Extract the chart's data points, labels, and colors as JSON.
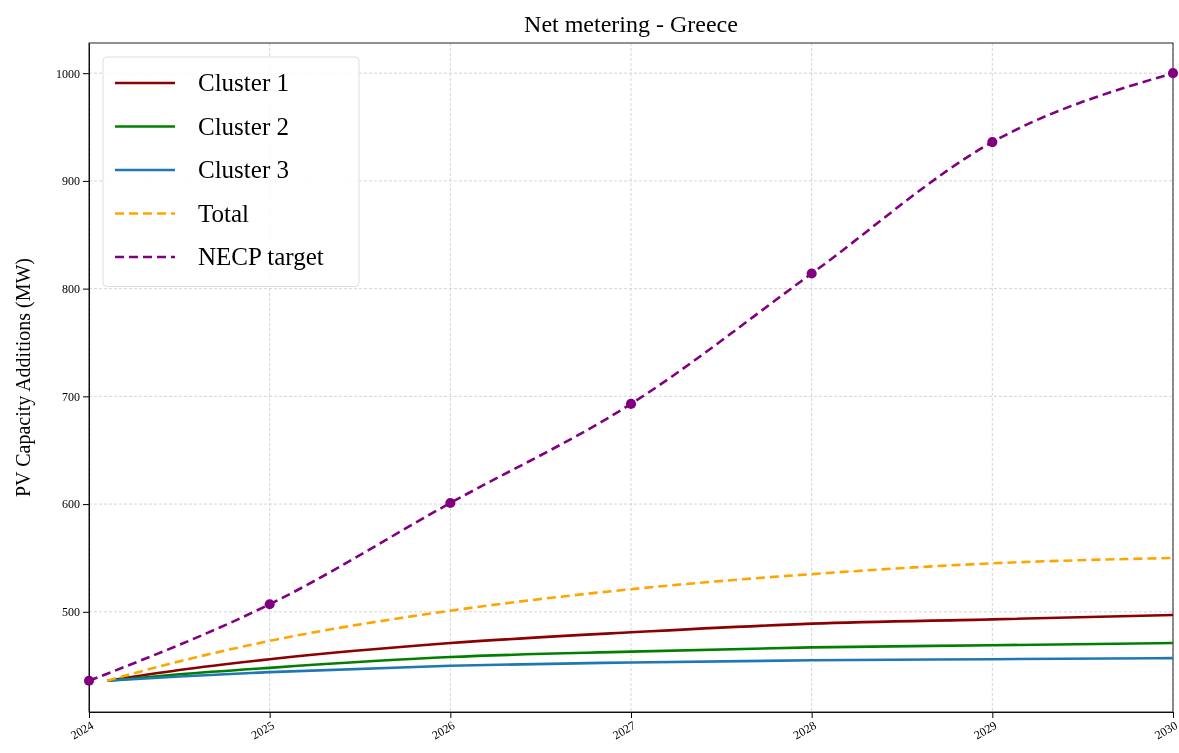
{
  "chart_data": {
    "type": "line",
    "title": "Net metering - Greece",
    "ylabel": "PV Capacity Additions (MW)",
    "xlim": [
      2024,
      2030
    ],
    "xticks": [
      2024,
      2025,
      2026,
      2027,
      2028,
      2029,
      2030
    ],
    "ylim": [
      407,
      1028
    ],
    "yticks": [
      500,
      600,
      700,
      800,
      900,
      1000
    ],
    "grid": true,
    "legend": "top left",
    "series": [
      {
        "name": "Cluster 1",
        "color": "#8b0000",
        "line_style": "solid",
        "marker": "none",
        "x": [
          2024.1,
          2024.5,
          2025,
          2026,
          2027,
          2028,
          2029,
          2030
        ],
        "values": [
          436,
          446,
          456,
          471,
          481,
          489,
          493,
          497
        ]
      },
      {
        "name": "Cluster 2",
        "color": "#008000",
        "line_style": "solid",
        "marker": "none",
        "x": [
          2024.1,
          2024.5,
          2025,
          2026,
          2027,
          2028,
          2029,
          2030
        ],
        "values": [
          436,
          442,
          448,
          458,
          463,
          467,
          469,
          471
        ]
      },
      {
        "name": "Cluster 3",
        "color": "#1f77b4",
        "line_style": "solid",
        "marker": "none",
        "x": [
          2024.1,
          2024.5,
          2025,
          2026,
          2027,
          2028,
          2029,
          2030
        ],
        "values": [
          436,
          440,
          444,
          450,
          453,
          455,
          456,
          457
        ]
      },
      {
        "name": "Total",
        "color": "#ffa500",
        "line_style": "dashed",
        "marker": "none",
        "x": [
          2024.1,
          2024.5,
          2025,
          2026,
          2027,
          2028,
          2029,
          2030
        ],
        "values": [
          436,
          454,
          473,
          501,
          521,
          535,
          545,
          550
        ]
      },
      {
        "name": "NECP target",
        "color": "#800080",
        "line_style": "dashed",
        "marker": "circle",
        "x": [
          2024,
          2025,
          2026,
          2027,
          2028,
          2029,
          2030
        ],
        "values": [
          436,
          507,
          601,
          693,
          814,
          936,
          1000
        ]
      }
    ]
  }
}
